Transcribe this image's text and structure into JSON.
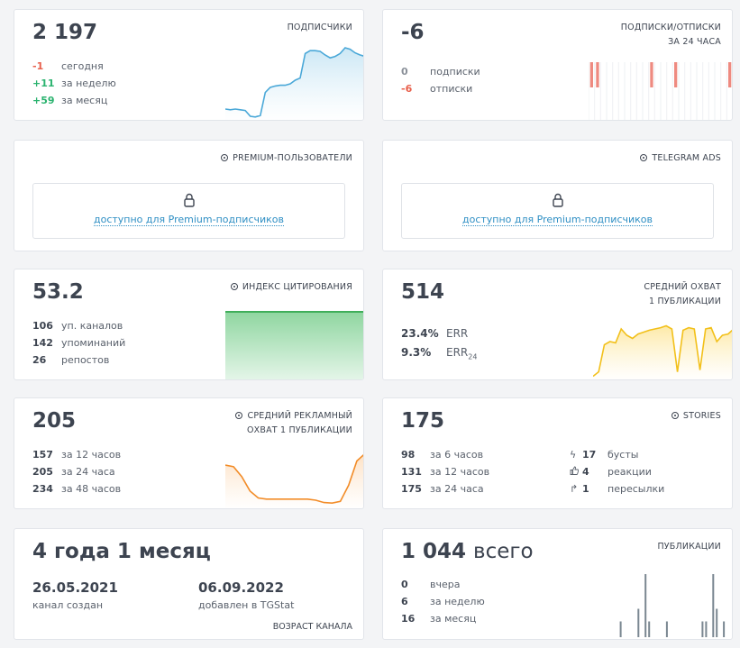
{
  "subscribers": {
    "value": "2 197",
    "title": "ПОДПИСЧИКИ",
    "rows": [
      {
        "value": "-1",
        "label": "сегодня"
      },
      {
        "value": "+11",
        "label": "за неделю"
      },
      {
        "value": "+59",
        "label": "за месяц"
      }
    ],
    "series": [
      0.15,
      0.14,
      0.15,
      0.14,
      0.13,
      0.05,
      0.04,
      0.06,
      0.38,
      0.45,
      0.47,
      0.48,
      0.48,
      0.5,
      0.55,
      0.58,
      0.92,
      0.96,
      0.96,
      0.95,
      0.9,
      0.86,
      0.88,
      0.92,
      1.0,
      0.98,
      0.93,
      0.9,
      0.88
    ]
  },
  "subs_unsubs": {
    "value": "-6",
    "title_line1": "ПОДПИСКИ/ОТПИСКИ",
    "title_line2": "ЗА 24 ЧАСА",
    "rows": [
      {
        "value": "0",
        "label": "подписки"
      },
      {
        "value": "-6",
        "label": "отписки"
      }
    ],
    "bars": [
      1,
      1,
      0,
      0,
      0,
      0,
      0,
      0,
      0,
      0,
      1,
      0,
      0,
      0,
      1,
      0,
      0,
      0,
      0,
      0,
      0,
      0,
      0,
      1
    ]
  },
  "premium": {
    "title": "PREMIUM-ПОЛЬЗОВАТЕЛИ",
    "locked_text": "доступно для Premium-подписчиков"
  },
  "telegram_ads": {
    "title": "TELEGRAM ADS",
    "locked_text": "доступно для Premium-подписчиков"
  },
  "citation": {
    "value": "53.2",
    "title": "ИНДЕКС ЦИТИРОВАНИЯ",
    "rows": [
      {
        "value": "106",
        "label": "уп. каналов"
      },
      {
        "value": "142",
        "label": "упоминаний"
      },
      {
        "value": "26",
        "label": "репостов"
      }
    ]
  },
  "avg_reach": {
    "value": "514",
    "title_line1": "СРЕДНИЙ ОХВАТ",
    "title_line2": "1 ПУБЛИКАЦИИ",
    "err": {
      "value": "23.4%",
      "label": "ERR"
    },
    "err24": {
      "value": "9.3%",
      "label": "ERR",
      "sub": "24"
    },
    "series": [
      0.05,
      0.12,
      0.55,
      0.6,
      0.58,
      0.8,
      0.7,
      0.65,
      0.72,
      0.75,
      0.78,
      0.8,
      0.82,
      0.85,
      0.8,
      0.12,
      0.78,
      0.82,
      0.8,
      0.15,
      0.8,
      0.82,
      0.6,
      0.7,
      0.72,
      0.8
    ]
  },
  "ad_reach": {
    "value": "205",
    "title_line1": "СРЕДНИЙ РЕКЛАМНЫЙ",
    "title_line2": "ОХВАТ 1 ПУБЛИКАЦИИ",
    "rows": [
      {
        "value": "157",
        "label": "за 12 часов"
      },
      {
        "value": "205",
        "label": "за 24 часа"
      },
      {
        "value": "234",
        "label": "за 48 часов"
      }
    ],
    "series": [
      0.75,
      0.72,
      0.55,
      0.3,
      0.18,
      0.16,
      0.16,
      0.16,
      0.16,
      0.16,
      0.16,
      0.14,
      0.1,
      0.09,
      0.12,
      0.4,
      0.82,
      0.95
    ]
  },
  "stories": {
    "value": "175",
    "title": "STORIES",
    "rows": [
      {
        "value": "98",
        "label": "за 6 часов"
      },
      {
        "value": "131",
        "label": "за 12 часов"
      },
      {
        "value": "175",
        "label": "за 24 часа"
      }
    ],
    "right_rows": [
      {
        "icon": "lightning-icon",
        "value": "17",
        "label": "бусты"
      },
      {
        "icon": "thumbs-up-icon",
        "value": "4",
        "label": "реакции"
      },
      {
        "icon": "share-arrow-icon",
        "value": "1",
        "label": "пересылки"
      }
    ]
  },
  "age": {
    "value": "4 года 1 месяц",
    "created_date": "26.05.2021",
    "created_label": "канал создан",
    "added_date": "06.09.2022",
    "added_label": "добавлен в TGStat",
    "footer": "ВОЗРАСТ КАНАЛА"
  },
  "publications": {
    "value": "1 044",
    "value_suffix": "всего",
    "title": "ПУБЛИКАЦИИ",
    "rows": [
      {
        "value": "0",
        "label": "вчера"
      },
      {
        "value": "6",
        "label": "за неделю"
      },
      {
        "value": "16",
        "label": "за месяц"
      }
    ],
    "bars": [
      0,
      0,
      0,
      0,
      0,
      0,
      0,
      0,
      0.25,
      0,
      0,
      0,
      0,
      0.45,
      0,
      1.0,
      0.25,
      0,
      0,
      0,
      0,
      0.25,
      0,
      0,
      0,
      0,
      0,
      0,
      0,
      0,
      0,
      0.25,
      0.25,
      0,
      1.0,
      0.45,
      0,
      0.25,
      0,
      0
    ]
  },
  "colors": {
    "blue_line": "#4aa8d8",
    "blue_fill": "#cbe7f5",
    "red_bar": "#ee8a80",
    "green_line": "#3fae5a",
    "green_fill": "#c9ecd2",
    "yellow_line": "#f2c01a",
    "yellow_fill": "#fde9a6",
    "orange_line": "#f28c28",
    "orange_fill": "#fde0c2",
    "gray_bar": "#7a8791"
  }
}
